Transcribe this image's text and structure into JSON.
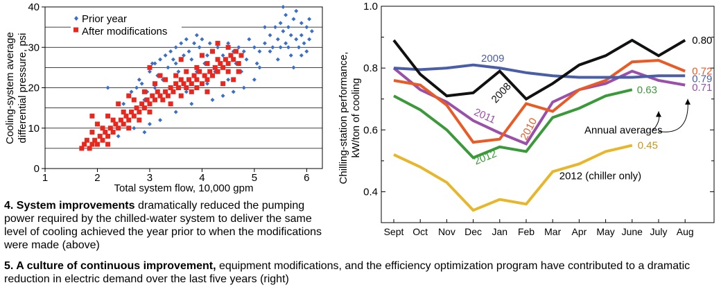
{
  "chart_data": [
    {
      "type": "scatter",
      "xlabel": "Total system flow, 10,000 gpm",
      "ylabel_lines": [
        "Cooling-system average",
        "differential pressure, psi"
      ],
      "xlim": [
        1,
        6.3
      ],
      "ylim": [
        0,
        40
      ],
      "xticks": [
        "1",
        "2",
        "3",
        "4",
        "5",
        "6"
      ],
      "yticks": [
        "0",
        "10",
        "20",
        "30",
        "40"
      ],
      "gridlines_y": [
        5,
        10,
        15,
        20,
        25,
        30,
        35,
        40
      ],
      "legend_position": "top-left",
      "series": [
        {
          "name": "Prior year",
          "marker": "diamond",
          "color": "#3a6fc9",
          "points": [
            [
              2.75,
              20
            ],
            [
              2.8,
              22
            ],
            [
              2.9,
              17
            ],
            [
              2.95,
              19
            ],
            [
              3.0,
              24
            ],
            [
              3.05,
              26
            ],
            [
              3.1,
              20
            ],
            [
              3.15,
              23
            ],
            [
              3.2,
              27
            ],
            [
              3.25,
              22
            ],
            [
              3.3,
              28
            ],
            [
              3.35,
              25
            ],
            [
              3.4,
              29
            ],
            [
              3.45,
              27
            ],
            [
              3.5,
              30
            ],
            [
              3.55,
              24
            ],
            [
              3.6,
              31
            ],
            [
              3.65,
              28
            ],
            [
              3.7,
              32
            ],
            [
              3.75,
              29
            ],
            [
              3.8,
              27
            ],
            [
              3.85,
              31
            ],
            [
              3.9,
              33
            ],
            [
              3.95,
              30
            ],
            [
              4.0,
              32
            ],
            [
              4.05,
              26
            ],
            [
              4.1,
              28
            ],
            [
              4.15,
              31
            ],
            [
              4.2,
              29
            ],
            [
              4.3,
              30
            ],
            [
              4.4,
              28
            ],
            [
              4.5,
              31
            ],
            [
              4.6,
              29
            ],
            [
              4.7,
              30
            ],
            [
              4.8,
              29
            ],
            [
              4.9,
              32
            ],
            [
              5.0,
              30
            ],
            [
              5.1,
              29
            ],
            [
              5.2,
              31
            ],
            [
              5.3,
              33
            ],
            [
              5.35,
              30
            ],
            [
              5.4,
              35
            ],
            [
              5.45,
              32
            ],
            [
              5.5,
              36
            ],
            [
              5.5,
              30
            ],
            [
              5.55,
              34
            ],
            [
              5.6,
              38
            ],
            [
              5.6,
              31
            ],
            [
              5.65,
              35
            ],
            [
              5.7,
              33
            ],
            [
              5.7,
              28
            ],
            [
              5.75,
              37
            ],
            [
              5.8,
              32
            ],
            [
              5.8,
              39
            ],
            [
              5.85,
              30
            ],
            [
              5.9,
              36
            ],
            [
              5.9,
              33
            ],
            [
              5.95,
              31
            ],
            [
              6.0,
              35
            ],
            [
              6.05,
              37
            ],
            [
              6.05,
              32
            ],
            [
              6.1,
              34
            ],
            [
              5.3,
              29
            ],
            [
              5.2,
              35
            ],
            [
              5.45,
              27
            ],
            [
              5.65,
              30
            ],
            [
              5.75,
              25
            ],
            [
              5.9,
              28
            ],
            [
              6.0,
              29
            ],
            [
              5.55,
              40
            ],
            [
              2.65,
              19
            ],
            [
              2.85,
              21
            ],
            [
              3.1,
              26
            ],
            [
              3.5,
              26
            ],
            [
              3.9,
              24
            ],
            [
              4.25,
              24
            ],
            [
              4.45,
              27
            ],
            [
              4.65,
              26
            ],
            [
              4.85,
              27
            ],
            [
              5.05,
              26
            ],
            [
              2.2,
              20
            ],
            [
              2.5,
              16
            ],
            [
              3.2,
              12
            ],
            [
              3.5,
              14
            ],
            [
              3.8,
              16
            ],
            [
              4.2,
              17
            ],
            [
              4.4,
              18
            ],
            [
              4.6,
              19
            ],
            [
              4.8,
              20
            ],
            [
              5.0,
              22
            ],
            [
              2.4,
              8
            ],
            [
              2.7,
              10
            ],
            [
              2.9,
              9
            ],
            [
              3.0,
              11
            ],
            [
              3.4,
              20
            ],
            [
              3.7,
              19
            ],
            [
              4.1,
              21
            ],
            [
              4.5,
              22
            ],
            [
              4.75,
              24
            ],
            [
              5.1,
              25
            ]
          ]
        },
        {
          "name": "After modifications",
          "marker": "square",
          "color": "#e8281e",
          "points": [
            [
              1.7,
              5
            ],
            [
              1.75,
              6
            ],
            [
              1.8,
              7
            ],
            [
              1.85,
              5
            ],
            [
              1.9,
              6
            ],
            [
              1.95,
              7
            ],
            [
              2.0,
              6
            ],
            [
              2.05,
              8
            ],
            [
              2.1,
              7
            ],
            [
              2.15,
              9
            ],
            [
              2.2,
              8
            ],
            [
              2.25,
              10
            ],
            [
              2.3,
              9
            ],
            [
              2.35,
              11
            ],
            [
              2.4,
              10
            ],
            [
              2.45,
              12
            ],
            [
              2.5,
              11
            ],
            [
              2.55,
              13
            ],
            [
              2.6,
              12
            ],
            [
              2.65,
              14
            ],
            [
              2.7,
              13
            ],
            [
              2.75,
              15
            ],
            [
              2.8,
              14
            ],
            [
              2.85,
              16
            ],
            [
              2.9,
              15
            ],
            [
              2.95,
              17
            ],
            [
              3.0,
              16
            ],
            [
              3.05,
              18
            ],
            [
              3.1,
              17
            ],
            [
              3.15,
              19
            ],
            [
              3.2,
              18
            ],
            [
              3.25,
              17
            ],
            [
              3.3,
              19
            ],
            [
              3.35,
              18
            ],
            [
              3.4,
              20
            ],
            [
              3.45,
              19
            ],
            [
              3.5,
              21
            ],
            [
              3.55,
              20
            ],
            [
              3.6,
              22
            ],
            [
              3.65,
              21
            ],
            [
              3.7,
              20
            ],
            [
              3.75,
              22
            ],
            [
              3.8,
              21
            ],
            [
              3.85,
              23
            ],
            [
              3.9,
              22
            ],
            [
              3.95,
              24
            ],
            [
              4.0,
              21
            ],
            [
              4.05,
              23
            ],
            [
              4.1,
              22
            ],
            [
              4.15,
              24
            ],
            [
              4.2,
              23
            ],
            [
              4.25,
              25
            ],
            [
              4.3,
              24
            ],
            [
              4.35,
              26
            ],
            [
              4.4,
              25
            ],
            [
              4.45,
              27
            ],
            [
              4.5,
              26
            ],
            [
              4.55,
              28
            ],
            [
              4.6,
              27
            ],
            [
              4.65,
              29
            ],
            [
              4.7,
              26
            ],
            [
              4.75,
              28
            ],
            [
              4.5,
              24
            ],
            [
              4.3,
              27
            ],
            [
              4.1,
              26
            ],
            [
              3.9,
              25
            ],
            [
              3.7,
              24
            ],
            [
              3.5,
              23
            ],
            [
              3.3,
              22
            ],
            [
              3.1,
              21
            ],
            [
              2.9,
              19
            ],
            [
              2.7,
              17
            ],
            [
              2.5,
              14
            ],
            [
              2.3,
              12
            ],
            [
              2.1,
              10
            ],
            [
              1.9,
              9
            ],
            [
              2.0,
              11
            ],
            [
              2.2,
              13
            ],
            [
              2.4,
              16
            ],
            [
              2.6,
              18
            ],
            [
              3.0,
              25
            ],
            [
              3.2,
              23
            ],
            [
              3.4,
              16
            ],
            [
              3.6,
              18
            ],
            [
              3.8,
              19
            ],
            [
              4.0,
              28
            ],
            [
              4.2,
              29
            ],
            [
              4.4,
              21
            ],
            [
              4.6,
              22
            ],
            [
              4.3,
              31
            ],
            [
              3.0,
              14
            ],
            [
              2.8,
              12
            ],
            [
              2.6,
              10
            ],
            [
              3.6,
              27
            ],
            [
              3.9,
              20
            ],
            [
              4.1,
              19
            ],
            [
              4.5,
              30
            ],
            [
              4.7,
              24
            ],
            [
              2.2,
              6
            ],
            [
              1.9,
              13
            ]
          ]
        }
      ]
    },
    {
      "type": "line",
      "ylabel_lines": [
        "Chilling-station performance,",
        "kW/ton of cooling"
      ],
      "categories": [
        "Sept",
        "Oct",
        "Nov",
        "Dec",
        "Jan",
        "Feb",
        "Mar",
        "Apr",
        "May",
        "June",
        "July",
        "Aug"
      ],
      "ylim": [
        0.3,
        1.0
      ],
      "yticks": [
        "0.4",
        "0.6",
        "0.8",
        "1.0"
      ],
      "series": [
        {
          "name": "2008",
          "color": "#111111",
          "values": [
            0.89,
            0.78,
            0.71,
            0.72,
            0.79,
            0.7,
            0.75,
            0.81,
            0.84,
            0.89,
            0.84,
            0.89
          ]
        },
        {
          "name": "2009",
          "color": "#4a5ea8",
          "values": [
            0.8,
            0.795,
            0.8,
            0.81,
            0.8,
            0.785,
            0.775,
            0.77,
            0.77,
            0.77,
            0.775,
            0.775
          ]
        },
        {
          "name": "2010",
          "color": "#ea5a25",
          "values": [
            0.76,
            0.745,
            0.68,
            0.56,
            0.57,
            0.685,
            0.66,
            0.73,
            0.76,
            0.82,
            0.825,
            0.79
          ]
        },
        {
          "name": "2011",
          "color": "#9a4fa8",
          "values": [
            0.8,
            0.73,
            0.69,
            0.63,
            0.59,
            0.555,
            0.69,
            0.73,
            0.75,
            0.79,
            0.76,
            0.745
          ]
        },
        {
          "name": "2012",
          "color": "#3a9a3a",
          "values": [
            0.71,
            0.665,
            0.6,
            0.51,
            0.545,
            0.53,
            0.64,
            0.67,
            0.71,
            0.73,
            null,
            null
          ]
        },
        {
          "name": "2012 (chiller only)",
          "color": "#e8b62a",
          "values": [
            0.52,
            0.48,
            0.43,
            0.34,
            0.375,
            0.36,
            0.465,
            0.49,
            0.53,
            0.55,
            null,
            null
          ]
        }
      ],
      "annotations": {
        "annual_averages": "Annual averages",
        "end_values": [
          "0.80",
          "0.72",
          "0.79",
          "0.71",
          "0.63",
          "0.45"
        ]
      }
    }
  ],
  "captions": {
    "fig4_bold": "4. System improvements",
    "fig4_text": " dramatically reduced the pumping power required by the chilled-water system to deliver the same level of cooling achieved the year prior to when the modifications were made (above)",
    "fig5_bold": "5. A culture of continuous improvement,",
    "fig5_text": " equipment modifications, and the efficiency optimization program have contributed to a dramatic reduction in electric demand over the last five years (right)"
  }
}
